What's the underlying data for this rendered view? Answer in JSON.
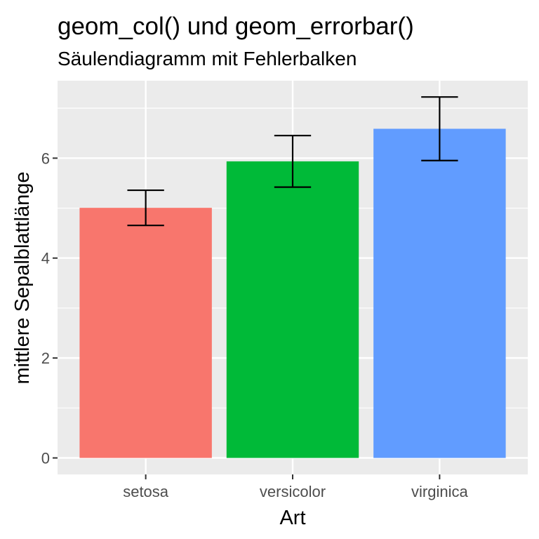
{
  "chart_data": {
    "type": "bar",
    "title": "geom_col() und geom_errorbar()",
    "subtitle": "Säulendiagramm mit Fehlerbalken",
    "xlabel": "Art",
    "ylabel": "mittlere Sepalblattlänge",
    "categories": [
      "setosa",
      "versicolor",
      "virginica"
    ],
    "values": [
      5.006,
      5.936,
      6.588
    ],
    "error_lower": [
      4.654,
      5.42,
      5.952
    ],
    "error_upper": [
      5.358,
      6.452,
      7.224
    ],
    "ylim": [
      -0.33,
      7.55
    ],
    "yticks": [
      0,
      2,
      4,
      6
    ],
    "yticks_minor": [
      1,
      3,
      5,
      7
    ],
    "colors": [
      "#F8766D",
      "#00BA38",
      "#619CFF"
    ],
    "panel_background": "#EBEBEB",
    "grid": true,
    "legend": "none"
  }
}
